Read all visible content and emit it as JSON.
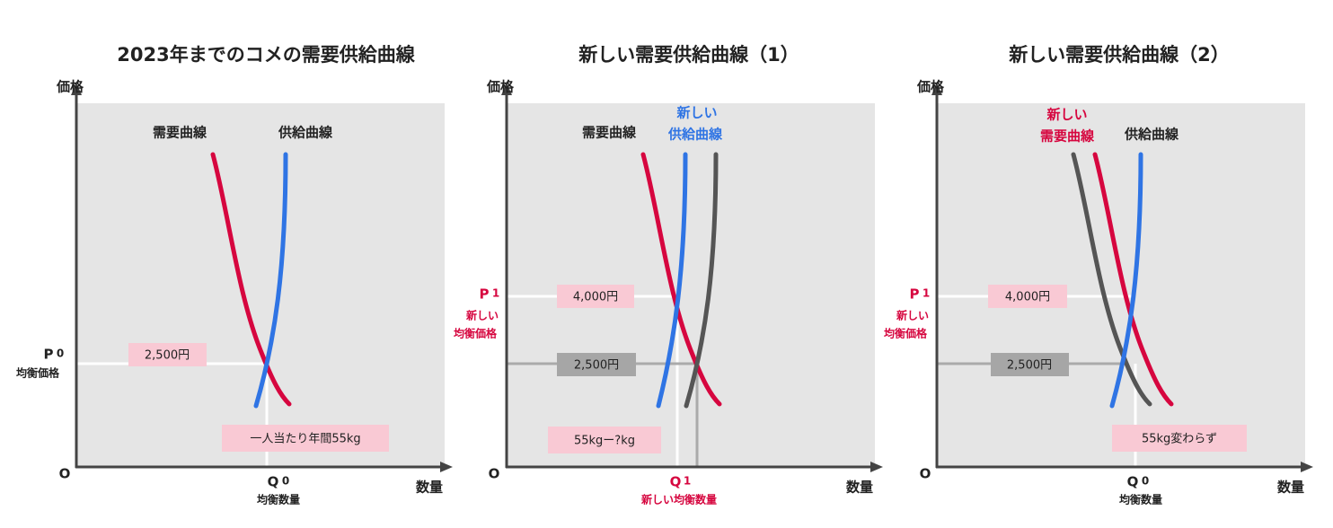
{
  "panels": [
    {
      "title": "2023年までのコメの需要供給曲線",
      "y_axis": "価格",
      "x_axis": "数量",
      "origin": "O",
      "demand_label": "需要曲線",
      "supply_label": "供給曲線",
      "price_box": "2,500円",
      "p_letter": "P",
      "p_sub": "0",
      "p_caption": "均衡価格",
      "quantity_box": "一人当たり年間55kg",
      "q_letter": "Q",
      "q_sub": "0",
      "q_caption": "均衡数量"
    },
    {
      "title": "新しい需要供給曲線（1）",
      "y_axis": "価格",
      "x_axis": "数量",
      "origin": "O",
      "demand_label": "需要曲線",
      "supply_label_line1": "新しい",
      "supply_label_line2": "供給曲線",
      "new_price_box": "4,000円",
      "old_price_box": "2,500円",
      "p_letter": "P",
      "p_sub": "1",
      "p_caption_line1": "新しい",
      "p_caption_line2": "均衡価格",
      "quantity_box": "55kgー?kg",
      "q_letter": "Q",
      "q_sub": "1",
      "q_caption": "新しい均衡数量"
    },
    {
      "title": "新しい需要供給曲線（2）",
      "y_axis": "価格",
      "x_axis": "数量",
      "origin": "O",
      "demand_label_line1": "新しい",
      "demand_label_line2": "需要曲線",
      "supply_label": "供給曲線",
      "new_price_box": "4,000円",
      "old_price_box": "2,500円",
      "p_letter": "P",
      "p_sub": "1",
      "p_caption_line1": "新しい",
      "p_caption_line2": "均衡価格",
      "quantity_box": "55kg変わらず",
      "q_letter": "Q",
      "q_sub": "0",
      "q_caption": "均衡数量"
    }
  ]
}
